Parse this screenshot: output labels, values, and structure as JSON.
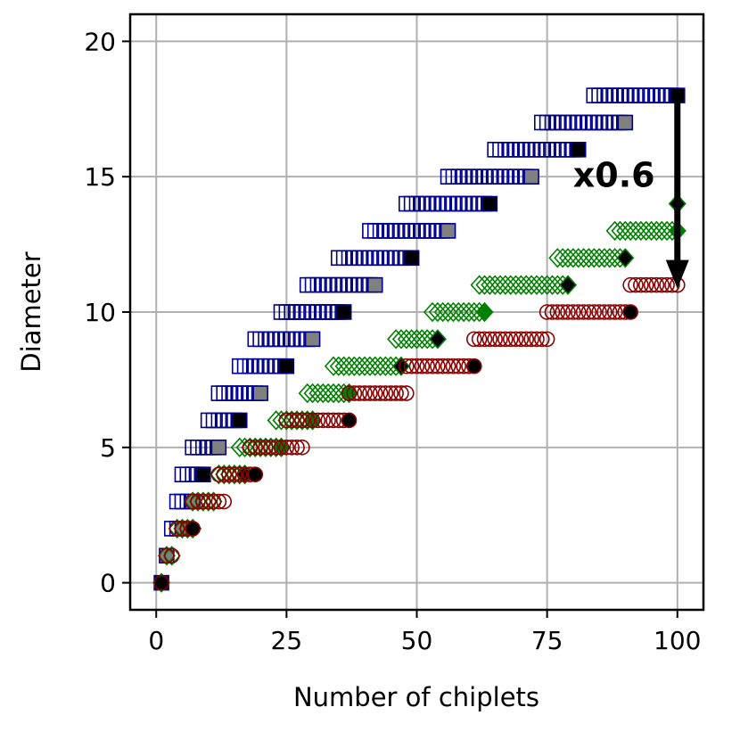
{
  "chart_data": {
    "type": "scatter",
    "title": "",
    "xlabel": "Number of chiplets",
    "ylabel": "Diameter",
    "xlim": [
      -5,
      105
    ],
    "ylim": [
      -1,
      21
    ],
    "xticks": [
      0,
      25,
      50,
      75,
      100
    ],
    "yticks": [
      0,
      5,
      10,
      15,
      20
    ],
    "grid": true,
    "legend": "none",
    "annotation": {
      "text": "x0.6",
      "arrow_from": [
        100,
        18
      ],
      "arrow_to": [
        100,
        11
      ]
    },
    "series": [
      {
        "marker": "square",
        "color": "#00008b",
        "fill": "none",
        "levels": [
          [
            0,
            1,
            1
          ],
          [
            1,
            2,
            2
          ],
          [
            2,
            3,
            5
          ],
          [
            3,
            4,
            7
          ],
          [
            4,
            5,
            9
          ],
          [
            5,
            7,
            12
          ],
          [
            6,
            10,
            16
          ],
          [
            7,
            12,
            20
          ],
          [
            8,
            16,
            25
          ],
          [
            9,
            19,
            30
          ],
          [
            10,
            24,
            36
          ],
          [
            11,
            29,
            42
          ],
          [
            12,
            35,
            49
          ],
          [
            13,
            41,
            56
          ],
          [
            14,
            48,
            64
          ],
          [
            15,
            56,
            72
          ],
          [
            16,
            65,
            81
          ],
          [
            17,
            74,
            90
          ],
          [
            18,
            84,
            100
          ]
        ],
        "highlight": {
          "by_level": {
            "0": "#000000",
            "1": "#808080",
            "2": "#808080",
            "3": "#808080",
            "4": "#000000",
            "5": "#808080",
            "6": "#000000",
            "7": "#808080",
            "8": "#000000",
            "9": "#808080",
            "10": "#000000",
            "11": "#808080",
            "12": "#000000",
            "13": "#808080",
            "14": "#000000",
            "15": "#808080",
            "16": "#000000",
            "17": "#808080",
            "18": "#000000"
          }
        }
      },
      {
        "marker": "diamond",
        "color": "#008000",
        "fill": "none",
        "levels": [
          [
            0,
            1,
            1
          ],
          [
            1,
            2,
            3
          ],
          [
            2,
            4,
            7
          ],
          [
            3,
            7,
            11
          ],
          [
            4,
            12,
            17
          ],
          [
            5,
            16,
            24
          ],
          [
            6,
            23,
            30
          ],
          [
            7,
            29,
            37
          ],
          [
            8,
            34,
            47
          ],
          [
            9,
            46,
            54
          ],
          [
            10,
            53,
            63
          ],
          [
            11,
            62,
            79
          ],
          [
            12,
            77,
            90
          ],
          [
            13,
            88,
            100
          ]
        ],
        "highlight": {
          "by_level": {
            "0": "#000000",
            "2": "#000000",
            "4": "#000000",
            "5": "#008000",
            "6": "#008000",
            "7": "#008000",
            "8": "#000000",
            "9": "#000000",
            "10": "#008000",
            "11": "#000000",
            "12": "#000000",
            "13": "#008000"
          }
        },
        "extra_points": [
          [
            100,
            14
          ]
        ]
      },
      {
        "marker": "circle",
        "color": "#8b0000",
        "fill": "none",
        "levels": [
          [
            0,
            1,
            1
          ],
          [
            1,
            2,
            3
          ],
          [
            2,
            4,
            7
          ],
          [
            3,
            7,
            13
          ],
          [
            4,
            12,
            19
          ],
          [
            5,
            18,
            28
          ],
          [
            6,
            25,
            37
          ],
          [
            7,
            37,
            48
          ],
          [
            8,
            48,
            61
          ],
          [
            9,
            61,
            75
          ],
          [
            10,
            75,
            91
          ],
          [
            11,
            91,
            100
          ]
        ],
        "highlight": {
          "by_level": {
            "0": "#000000",
            "2": "#000000",
            "4": "#000000",
            "6": "#000000",
            "8": "#000000",
            "10": "#000000"
          }
        }
      }
    ]
  }
}
